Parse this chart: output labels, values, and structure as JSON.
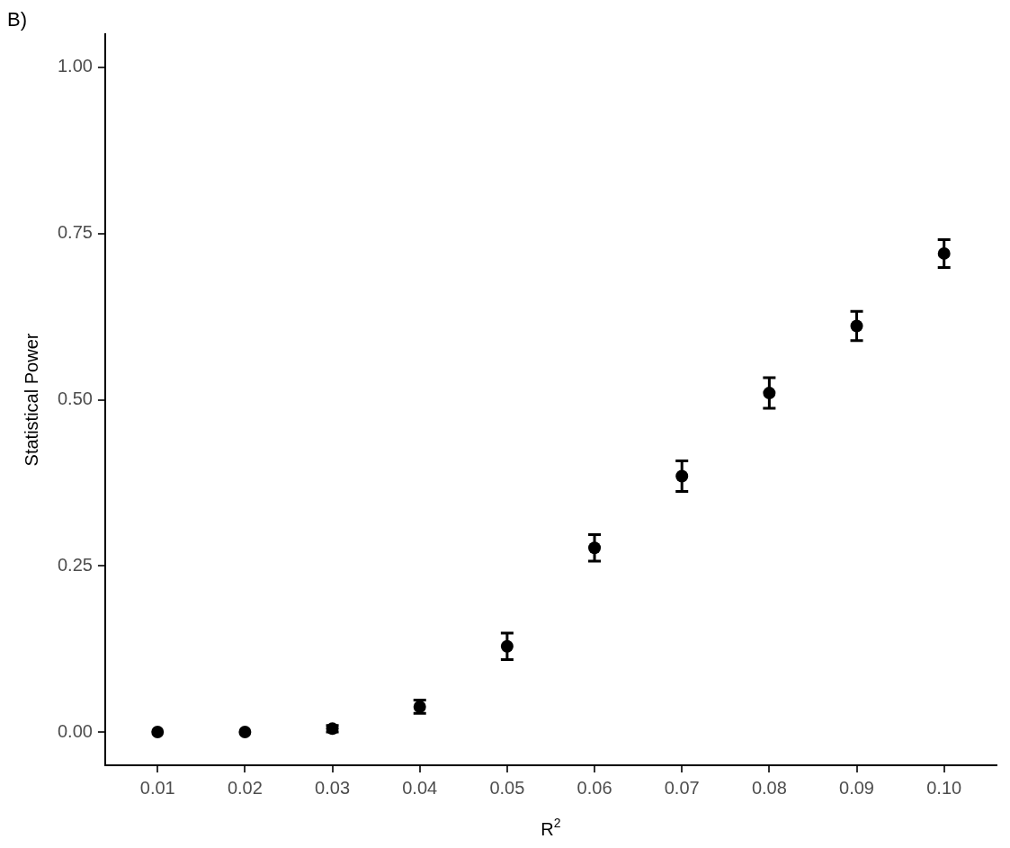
{
  "chart_data": {
    "type": "scatter",
    "title": "B)",
    "xlabel": "R$^{2}$",
    "ylabel": "Statistical Power",
    "x": [
      0.01,
      0.02,
      0.03,
      0.04,
      0.05,
      0.06,
      0.07,
      0.08,
      0.09,
      0.1
    ],
    "series": [
      {
        "color": "#000000",
        "values": [
          0,
          0,
          0.005,
          0.038,
          0.129,
          0.277,
          0.385,
          0.51,
          0.611,
          0.72
        ],
        "errors": [
          null,
          null,
          0.005,
          0.01,
          0.02,
          0.02,
          0.023,
          0.023,
          0.022,
          0.021
        ]
      }
    ],
    "xlim": [
      0.004,
      0.106
    ],
    "xticks": [
      0.01,
      0.02,
      0.03,
      0.04,
      0.05,
      0.06,
      0.07,
      0.08,
      0.09,
      {
        "value": 0.1,
        "label": "0.10"
      }
    ],
    "ylim": [
      -0.05,
      1.05
    ],
    "yticks": [
      {
        "value": 0,
        "label": "0.00"
      },
      0.25,
      {
        "value": 0.5,
        "label": "0.50"
      },
      0.75,
      {
        "value": 1,
        "label": "1.00"
      }
    ],
    "marker": "circle",
    "grid": false,
    "legend": false
  }
}
